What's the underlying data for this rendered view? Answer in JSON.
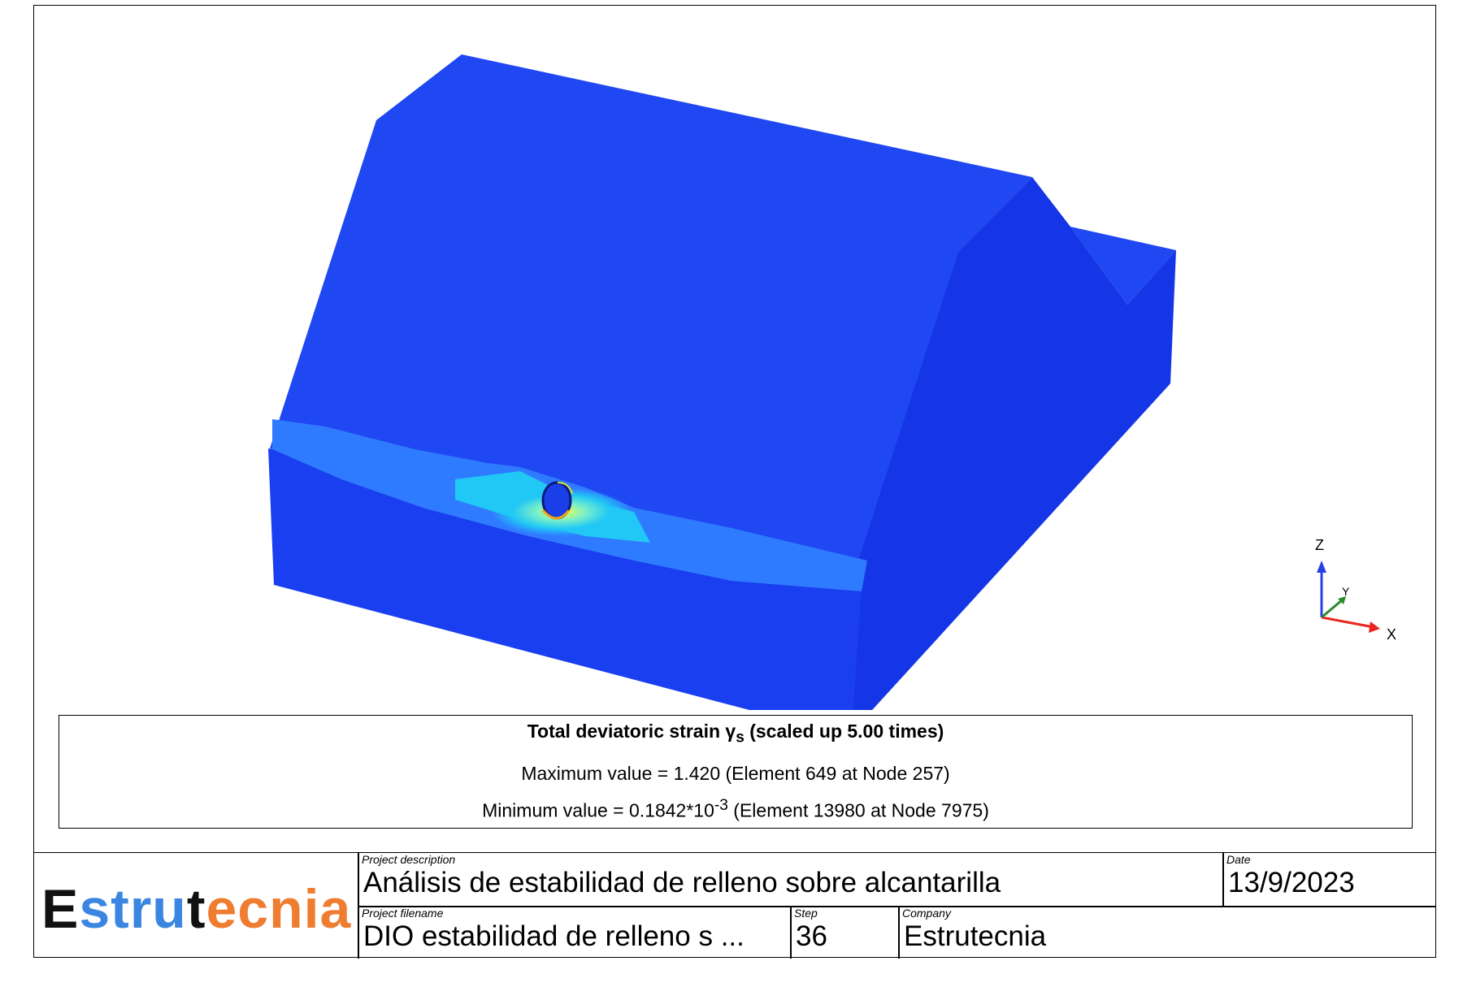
{
  "legend": {
    "title_main": "Total deviatoric strain γ",
    "title_sub": "s",
    "title_suffix": " (scaled up 5.00 times)",
    "max_line": "Maximum value = 1.420  (Element 649 at Node 257)",
    "min_prefix": "Minimum value = 0.1842*10",
    "min_exp": "-3",
    "min_suffix": "  (Element 13980 at Node 7975)"
  },
  "axes": {
    "z": "Z",
    "y": "Y",
    "x": "X"
  },
  "colors": {
    "model_top": "#1f47f2",
    "model_front": "#1a3ff0",
    "model_side": "#1536e6",
    "contour_light": "#2f7bff",
    "contour_cyan": "#21c8f5",
    "contour_yellow": "#f6ff3c",
    "axis_x": "#e8261e",
    "axis_y": "#2a8a2a",
    "axis_z": "#2a3fe0"
  },
  "titleblock": {
    "logo": {
      "part1": "E",
      "part2": "stru",
      "part3": "t",
      "part4": "ecnia"
    },
    "project_description_caption": "Project description",
    "project_description": "Análisis de estabilidad de relleno sobre alcantarilla",
    "date_caption": "Date",
    "date": "13/9/2023",
    "project_filename_caption": "Project filename",
    "project_filename": "DIO estabilidad de relleno s ...",
    "step_caption": "Step",
    "step": "36",
    "company_caption": "Company",
    "company": "Estrutecnia"
  }
}
